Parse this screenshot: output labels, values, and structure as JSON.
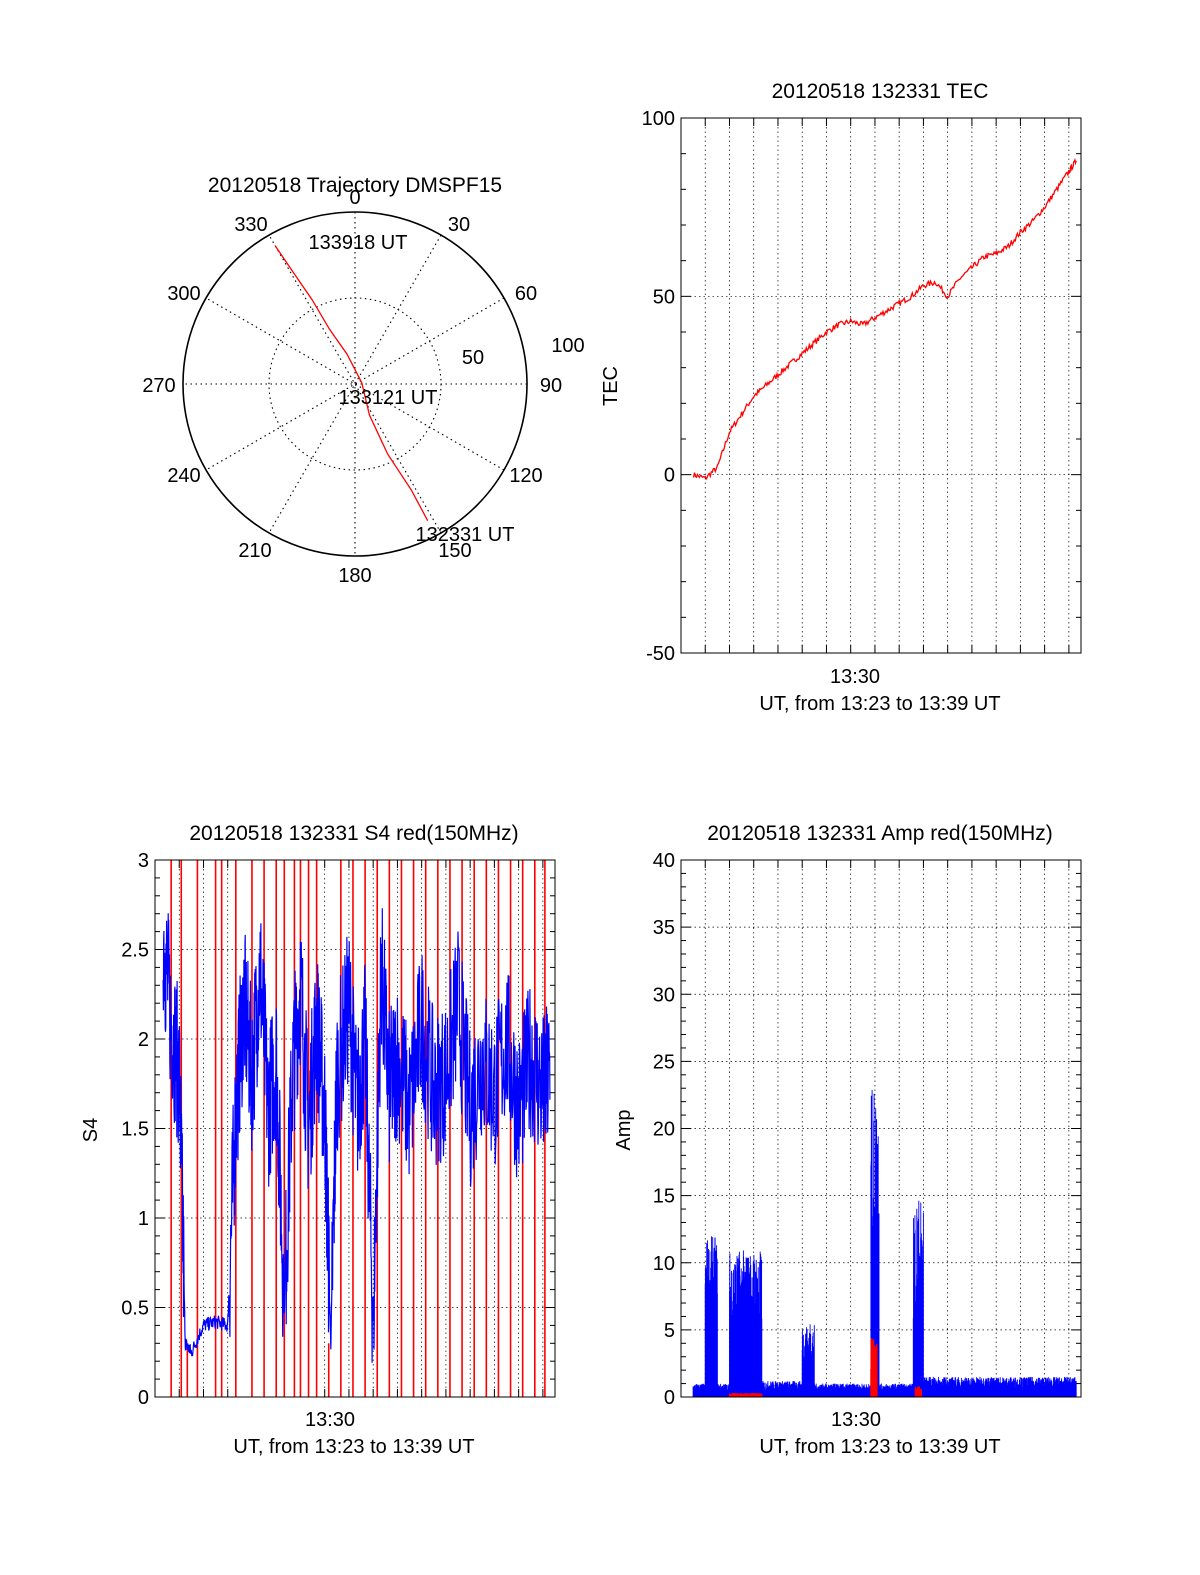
{
  "chart_data": [
    {
      "type": "polar",
      "title": "20120518 Trajectory DMSPF15",
      "angle_labels": [
        "0",
        "30",
        "60",
        "90",
        "120",
        "150",
        "180",
        "210",
        "240",
        "270",
        "300",
        "330"
      ],
      "radial_labels": [
        "50",
        "100"
      ],
      "rlim": [
        0,
        100
      ],
      "grid": true,
      "trajectory": {
        "color": "#ff0000",
        "points": [
          {
            "az": 330,
            "r": 93
          },
          {
            "az": 331,
            "r": 75
          },
          {
            "az": 333,
            "r": 55
          },
          {
            "az": 335,
            "r": 35
          },
          {
            "az": 345,
            "r": 18
          },
          {
            "az": 80,
            "r": 4
          },
          {
            "az": 155,
            "r": 20
          },
          {
            "az": 155,
            "r": 45
          },
          {
            "az": 152,
            "r": 70
          },
          {
            "az": 152,
            "r": 90
          }
        ]
      },
      "annotations": [
        {
          "text": "133918 UT",
          "az": 340,
          "r": 82
        },
        {
          "text": "133121 UT",
          "az": 190,
          "r": 5
        },
        {
          "text": "132331 UT",
          "az": 150,
          "r": 100
        }
      ]
    },
    {
      "type": "line",
      "title": "20120518 132331 TEC",
      "xlabel_tick": "13:30",
      "xlabel": "UT, from 13:23 to 13:39 UT",
      "ylabel": "TEC",
      "xlim": [
        "13:23:00",
        "13:39:30"
      ],
      "ylim": [
        -50,
        100
      ],
      "yticks": [
        -50,
        0,
        50,
        100
      ],
      "grid": true,
      "series": [
        {
          "color": "#ff0000",
          "x": [
            "13:23:31",
            "13:24:00",
            "13:24:30",
            "13:25:00",
            "13:25:30",
            "13:26:00",
            "13:26:30",
            "13:27:00",
            "13:27:30",
            "13:28:00",
            "13:28:30",
            "13:29:00",
            "13:29:30",
            "13:30:00",
            "13:30:30",
            "13:31:00",
            "13:31:30",
            "13:32:00",
            "13:32:30",
            "13:33:00",
            "13:33:30",
            "13:34:00",
            "13:34:30",
            "13:35:00",
            "13:35:30",
            "13:36:00",
            "13:36:30",
            "13:37:00",
            "13:37:30",
            "13:38:00",
            "13:38:30",
            "13:39:00",
            "13:39:18"
          ],
          "y": [
            0,
            -1,
            2,
            12,
            17,
            22,
            25,
            28,
            31,
            34,
            37,
            40,
            42,
            43,
            42,
            44,
            46,
            48,
            50,
            53,
            54,
            50,
            55,
            58,
            61,
            62,
            64,
            68,
            71,
            75,
            80,
            85,
            88
          ]
        }
      ]
    },
    {
      "type": "line",
      "title": "20120518 132331 S4 red(150MHz)",
      "xlabel_tick": "13:30",
      "xlabel": "UT, from 13:23 to 13:39 UT",
      "ylabel": "S4",
      "xlim": [
        "13:23:00",
        "13:39:30"
      ],
      "ylim": [
        0,
        3
      ],
      "yticks": [
        0,
        0.5,
        1,
        1.5,
        2,
        2.5,
        3
      ],
      "ytick_labels": [
        "0",
        "0.5",
        "1",
        "1.5",
        "2",
        "2.5",
        "3"
      ],
      "grid": true,
      "series": [
        {
          "color": "#ff0000",
          "style": "vertical spikes",
          "x": [
            "13:23:40",
            "13:24:05",
            "13:24:20",
            "13:24:45",
            "13:25:30",
            "13:25:45",
            "13:26:20",
            "13:27:00",
            "13:27:30",
            "13:28:00",
            "13:28:20",
            "13:28:45",
            "13:29:00",
            "13:29:20",
            "13:29:40",
            "13:30:10",
            "13:30:40",
            "13:31:10",
            "13:31:40",
            "13:32:10",
            "13:32:40",
            "13:33:10",
            "13:33:40",
            "13:34:10",
            "13:34:40",
            "13:35:10",
            "13:35:40",
            "13:36:10",
            "13:36:40",
            "13:37:10",
            "13:37:40",
            "13:38:10",
            "13:38:40",
            "13:39:05"
          ],
          "y": [
            3,
            3,
            0.3,
            3,
            3,
            3,
            3,
            3,
            3,
            3,
            3,
            3,
            3,
            3,
            3,
            0.3,
            3,
            3,
            3,
            3,
            3,
            3,
            3,
            3,
            3,
            3,
            3,
            3,
            3,
            3,
            3,
            3,
            3,
            3
          ]
        },
        {
          "color": "#0000ff",
          "x": [
            "13:23:20",
            "13:23:40",
            "13:24:00",
            "13:24:15",
            "13:24:30",
            "13:25:00",
            "13:25:30",
            "13:26:00",
            "13:26:20",
            "13:26:40",
            "13:27:00",
            "13:27:20",
            "13:27:40",
            "13:28:00",
            "13:28:20",
            "13:28:40",
            "13:29:00",
            "13:29:20",
            "13:29:40",
            "13:30:00",
            "13:30:15",
            "13:30:30",
            "13:31:00",
            "13:31:20",
            "13:31:40",
            "13:32:00",
            "13:32:20",
            "13:32:40",
            "13:33:00",
            "13:33:30",
            "13:34:00",
            "13:34:30",
            "13:35:00",
            "13:35:30",
            "13:36:00",
            "13:36:30",
            "13:37:00",
            "13:37:30",
            "13:38:00",
            "13:38:30",
            "13:39:00",
            "13:39:18"
          ],
          "y": [
            2.6,
            2.1,
            1.8,
            0.3,
            0.25,
            0.4,
            0.42,
            0.4,
            1.6,
            2.2,
            1.8,
            2.4,
            1.6,
            1.9,
            0.5,
            1.8,
            2.3,
            1.5,
            2.1,
            1.6,
            0.3,
            1.8,
            2.2,
            1.6,
            2.0,
            0.4,
            2.4,
            1.7,
            1.9,
            1.6,
            2.1,
            1.7,
            1.8,
            2.2,
            1.6,
            1.9,
            1.7,
            2.0,
            1.6,
            1.9,
            1.7,
            1.8
          ]
        }
      ]
    },
    {
      "type": "line",
      "title": "20120518 132331 Amp red(150MHz)",
      "xlabel_tick": "13:30",
      "xlabel": "UT, from 13:23 to 13:39 UT",
      "ylabel": "Amp",
      "xlim": [
        "13:23:00",
        "13:39:30"
      ],
      "ylim": [
        0,
        40
      ],
      "yticks": [
        0,
        5,
        10,
        15,
        20,
        25,
        30,
        35,
        40
      ],
      "grid": true,
      "series": [
        {
          "color": "#0000ff",
          "style": "dense noisy fill",
          "bursts": [
            {
              "from": "13:23:30",
              "to": "13:24:00",
              "level": 1
            },
            {
              "from": "13:24:00",
              "to": "13:24:30",
              "level": 12
            },
            {
              "from": "13:24:30",
              "to": "13:25:00",
              "level": 1
            },
            {
              "from": "13:25:00",
              "to": "13:26:20",
              "level": 11
            },
            {
              "from": "13:26:20",
              "to": "13:28:00",
              "level": 1.2
            },
            {
              "from": "13:28:00",
              "to": "13:28:30",
              "level": 5.5
            },
            {
              "from": "13:28:30",
              "to": "13:30:50",
              "level": 1
            },
            {
              "from": "13:30:50",
              "to": "13:31:10",
              "level": 23
            },
            {
              "from": "13:31:10",
              "to": "13:32:35",
              "level": 1
            },
            {
              "from": "13:32:35",
              "to": "13:33:00",
              "level": 15
            },
            {
              "from": "13:33:00",
              "to": "13:39:18",
              "level": 1.5
            }
          ]
        },
        {
          "color": "#ff0000",
          "bursts": [
            {
              "from": "13:25:00",
              "to": "13:26:20",
              "level": 0.3
            },
            {
              "from": "13:30:50",
              "to": "13:31:05",
              "level": 5
            },
            {
              "from": "13:32:40",
              "to": "13:32:55",
              "level": 0.8
            }
          ]
        }
      ]
    }
  ]
}
